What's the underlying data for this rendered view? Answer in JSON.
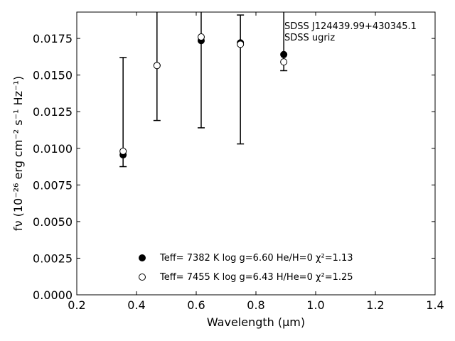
{
  "chart_data": {
    "type": "scatter",
    "xlabel": "Wavelength (μm)",
    "ylabel": "fν (10⁻²⁶ erg cm⁻² s⁻¹ Hz⁻¹)",
    "xlim": [
      0.2,
      1.4
    ],
    "ylim": [
      0.0,
      0.0193
    ],
    "x_ticks": [
      "0.2",
      "0.4",
      "0.6",
      "0.8",
      "1.0",
      "1.2",
      "1.4"
    ],
    "y_ticks": [
      "0.0000",
      "0.0025",
      "0.0050",
      "0.0075",
      "0.0100",
      "0.0125",
      "0.0150",
      "0.0175"
    ],
    "grid": false,
    "legend_position": "bottom-center",
    "annotation": [
      "SDSS J124439.99+430345.1",
      "SDSS ugriz"
    ],
    "observed": {
      "x": [
        0.3551,
        0.4686,
        0.6166,
        0.748,
        0.8932
      ],
      "y": [
        0.00955,
        0.01565,
        0.01735,
        0.0172,
        0.0164
      ],
      "yerr_low": [
        0.00875,
        0.0119,
        0.0114,
        0.0103,
        0.0153
      ],
      "yerr_high": [
        0.0162,
        0.0193,
        0.0193,
        0.0191,
        0.0193
      ]
    },
    "series": [
      {
        "name": "Teff= 7382 K  log g=6.60  He/H=0  χ²=1.13",
        "marker": "filled-circle",
        "x": [
          0.3551,
          0.4686,
          0.6166,
          0.748,
          0.8932
        ],
        "y": [
          0.00955,
          0.01565,
          0.01735,
          0.0172,
          0.0164
        ]
      },
      {
        "name": "Teff= 7455 K  log g=6.43  H/He=0  χ²=1.25",
        "marker": "open-circle",
        "x": [
          0.3551,
          0.4686,
          0.6166,
          0.748,
          0.8932
        ],
        "y": [
          0.0098,
          0.01565,
          0.0176,
          0.0171,
          0.0159
        ]
      }
    ]
  }
}
